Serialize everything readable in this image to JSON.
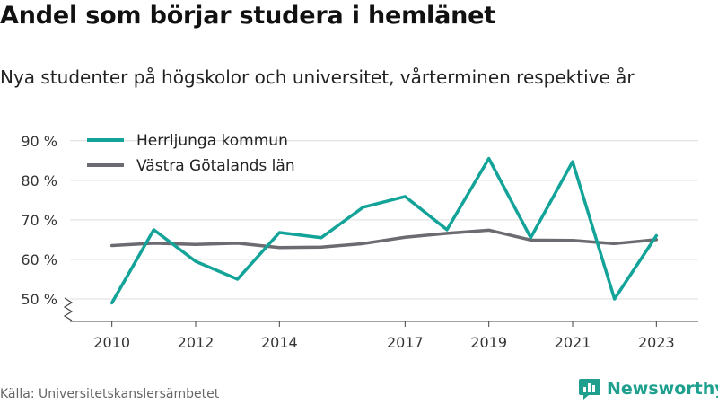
{
  "title": "Andel som börjar studera i hemlänet",
  "subtitle": "Nya studenter på högskolor och universitet, vårterminen respektive år",
  "source": "Källa: Universitetskanslersämbetet",
  "brand": {
    "name": "Newsworthy",
    "icon": "newsworthy-logo-icon",
    "color": "#1fa08e"
  },
  "chart_data": {
    "type": "line",
    "x": [
      2010,
      2011,
      2012,
      2013,
      2014,
      2015,
      2016,
      2017,
      2018,
      2019,
      2020,
      2021,
      2022,
      2023
    ],
    "xticks": [
      "2010",
      "2012",
      "2014",
      "2017",
      "2019",
      "2021",
      "2023"
    ],
    "xtick_values": [
      2010,
      2012,
      2014,
      2017,
      2019,
      2021,
      2023
    ],
    "yticks": [
      "50 %",
      "60 %",
      "70 %",
      "80 %",
      "90 %"
    ],
    "ytick_values": [
      50,
      60,
      70,
      80,
      90
    ],
    "ylim": [
      45,
      92
    ],
    "grid": true,
    "axis_break": true,
    "legend_position": "top-left",
    "series": [
      {
        "name": "Herrljunga kommun",
        "color": "#13a398",
        "values": [
          49,
          67.5,
          59.5,
          55,
          66.8,
          65.5,
          73.2,
          75.9,
          67.5,
          85.5,
          65.5,
          84.7,
          50,
          66
        ]
      },
      {
        "name": "Västra Götalands län",
        "color": "#6b6b71",
        "values": [
          63.5,
          64.1,
          63.8,
          64.1,
          63,
          63.1,
          64,
          65.6,
          66.6,
          67.4,
          64.9,
          64.8,
          64,
          65
        ]
      }
    ]
  }
}
